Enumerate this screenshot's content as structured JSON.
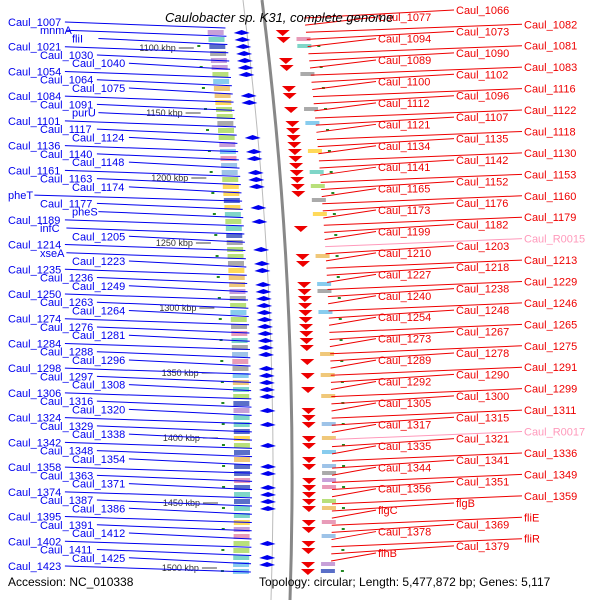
{
  "title": "Caulobacter sp. K31, complete genome",
  "accession": "Accession: NC_010338",
  "topology": "Topology: circular; Length: 5,477,872 bp; Genes: 5,117",
  "colors": {
    "minus": "#0000ee",
    "plus": "#ee0000",
    "rna": "#ff99bb",
    "backbone": "#888888",
    "tick": "#228822"
  },
  "scale_ticks": [
    "1100 kbp",
    "1150 kbp",
    "1200 kbp",
    "1250 kbp",
    "1300 kbp",
    "1350 kbp",
    "1400 kbp",
    "1450 kbp",
    "1500 kbp"
  ],
  "left_labels": [
    "Caul_1007",
    "mnmA",
    "fliI",
    "Caul_1021",
    "Caul_1030",
    "Caul_1040",
    "Caul_1054",
    "Caul_1064",
    "Caul_1075",
    "Caul_1084",
    "Caul_1091",
    "purU",
    "Caul_1101",
    "Caul_1117",
    "Caul_1124",
    "Caul_1136",
    "Caul_1140",
    "Caul_1148",
    "Caul_1161",
    "Caul_1163",
    "Caul_1174",
    "pheT",
    "Caul_1177",
    "pheS",
    "Caul_1189",
    "infC",
    "Caul_1205",
    "Caul_1214",
    "xseA",
    "Caul_1223",
    "Caul_1235",
    "Caul_1236",
    "Caul_1249",
    "Caul_1250",
    "Caul_1263",
    "Caul_1264",
    "Caul_1274",
    "Caul_1276",
    "Caul_1281",
    "Caul_1284",
    "Caul_1288",
    "Caul_1296",
    "Caul_1298",
    "Caul_1297",
    "Caul_1308",
    "Caul_1306",
    "Caul_1316",
    "Caul_1320",
    "Caul_1324",
    "Caul_1329",
    "Caul_1338",
    "Caul_1342",
    "Caul_1348",
    "Caul_1354",
    "Caul_1358",
    "Caul_1363",
    "Caul_1371",
    "Caul_1374",
    "Caul_1387",
    "Caul_1386",
    "Caul_1395",
    "Caul_1391",
    "Caul_1412",
    "Caul_1402",
    "Caul_1411",
    "Caul_1425",
    "Caul_1423"
  ],
  "right_labels": [
    "Caul_1066",
    "Caul_1077",
    "Caul_1082",
    "Caul_1073",
    "Caul_1094",
    "Caul_1081",
    "Caul_1090",
    "Caul_1089",
    "Caul_1083",
    "Caul_1102",
    "Caul_1100",
    "Caul_1116",
    "Caul_1096",
    "Caul_1112",
    "Caul_1122",
    "Caul_1107",
    "Caul_1121",
    "Caul_1118",
    "Caul_1135",
    "Caul_1134",
    "Caul_1130",
    "Caul_1142",
    "Caul_1141",
    "Caul_1153",
    "Caul_1152",
    "Caul_1165",
    "Caul_1160",
    "Caul_1176",
    "Caul_1173",
    "Caul_1179",
    "Caul_1182",
    "Caul_1199",
    "Caul_R0015",
    "Caul_1203",
    "Caul_1210",
    "Caul_1213",
    "Caul_1218",
    "Caul_1227",
    "Caul_1229",
    "Caul_1238",
    "Caul_1240",
    "Caul_1246",
    "Caul_1248",
    "Caul_1254",
    "Caul_1265",
    "Caul_1267",
    "Caul_1273",
    "Caul_1275",
    "Caul_1278",
    "Caul_1289",
    "Caul_1291",
    "Caul_1290",
    "Caul_1292",
    "Caul_1299",
    "Caul_1300",
    "Caul_1305",
    "Caul_1311",
    "Caul_1315",
    "Caul_1317",
    "Caul_R0017",
    "Caul_1321",
    "Caul_1335",
    "Caul_1336",
    "Caul_1341",
    "Caul_1344",
    "Caul_1349",
    "Caul_1351",
    "Caul_1356",
    "Caul_1359",
    "flgB",
    "flgC",
    "fliE",
    "Caul_1369",
    "Caul_1378",
    "fliR",
    "Caul_1379",
    "flhB"
  ]
}
